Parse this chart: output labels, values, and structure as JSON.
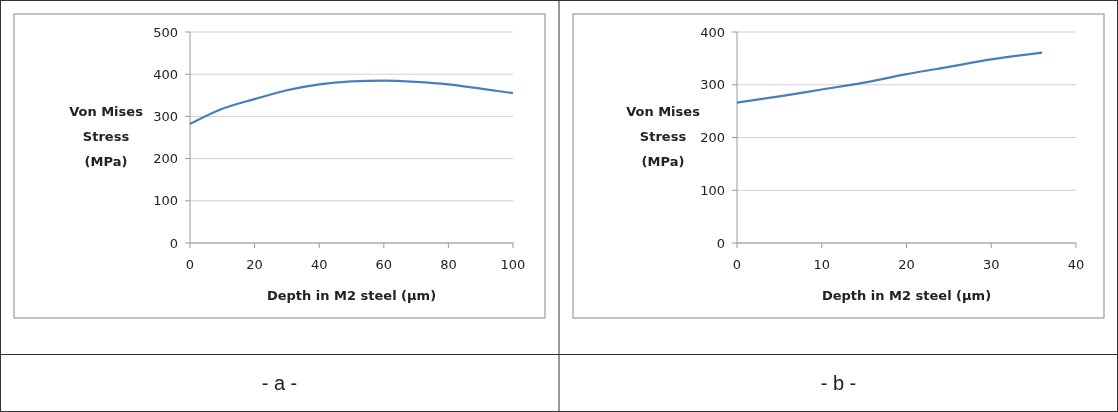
{
  "chart_data": [
    {
      "type": "line",
      "xlabel": "Depth in M2 steel (µm)",
      "ylabel": "Von  Mises\nStress\n(MPa)",
      "x": [
        0,
        10,
        20,
        30,
        40,
        50,
        60,
        70,
        80,
        90,
        100
      ],
      "xlim": [
        0,
        100
      ],
      "xticks": [
        0,
        20,
        40,
        60,
        80,
        100
      ],
      "ylim": [
        0,
        500
      ],
      "yticks": [
        0,
        100,
        200,
        300,
        400,
        500
      ],
      "grid": "y",
      "series": [
        {
          "color": "#4a7ebb",
          "values": [
            282,
            318,
            341,
            362,
            376,
            383,
            385,
            382,
            376,
            366,
            355
          ]
        }
      ],
      "annotations": [
        "- a -"
      ]
    },
    {
      "type": "line",
      "xlabel": "Depth in M2 steel (µm)",
      "ylabel": "Von  Mises\nStress\n(MPa)",
      "x": [
        0,
        5,
        10,
        15,
        20,
        25,
        30,
        36
      ],
      "xlim": [
        0,
        40
      ],
      "xticks": [
        0,
        10,
        20,
        30,
        40
      ],
      "ylim": [
        0,
        400
      ],
      "yticks": [
        0,
        100,
        200,
        300,
        400
      ],
      "grid": "y",
      "series": [
        {
          "color": "#4a7ebb",
          "values": [
            266,
            278,
            291,
            304,
            320,
            334,
            348,
            361
          ]
        }
      ],
      "annotations": [
        "- b -"
      ]
    }
  ]
}
